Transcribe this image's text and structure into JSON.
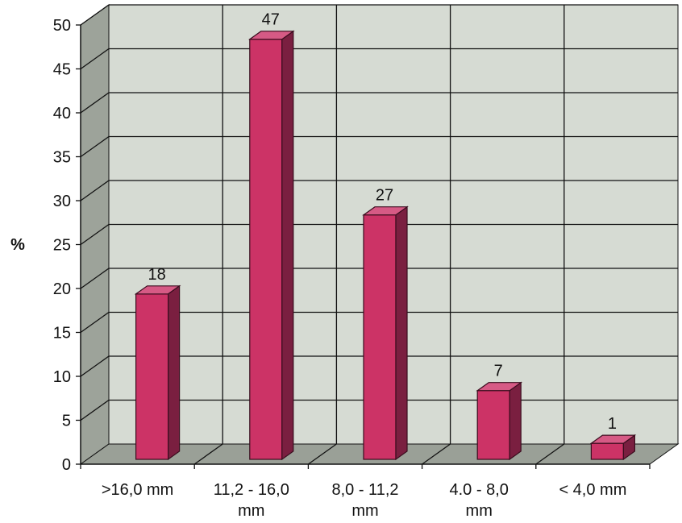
{
  "chart_data": {
    "type": "bar",
    "categories": [
      ">16,0 mm",
      "11,2 - 16,0 mm",
      "8,0 - 11,2 mm",
      "4.0 - 8,0 mm",
      "< 4,0 mm"
    ],
    "category_lines": [
      [
        ">16,0 mm"
      ],
      [
        "11,2 - 16,0",
        "mm"
      ],
      [
        "8,0 - 11,2",
        "mm"
      ],
      [
        "4.0 - 8,0",
        "mm"
      ],
      [
        "< 4,0 mm"
      ]
    ],
    "values": [
      18,
      47,
      27,
      7,
      1
    ],
    "ylabel": "%",
    "ylim": [
      0,
      50
    ],
    "yticks": [
      0,
      5,
      10,
      15,
      20,
      25,
      30,
      35,
      40,
      45,
      50
    ],
    "data_labels": [
      "18",
      "47",
      "27",
      "7",
      "1"
    ],
    "grid": true,
    "style": "3d",
    "colors": {
      "bar_front": "#cc3366",
      "bar_side": "#7a1f40",
      "bar_top": "#d65a85",
      "wall": "#d6dbd3",
      "side_wall": "#9da39a",
      "floor": "#9aa097",
      "grid": "#111111"
    }
  }
}
